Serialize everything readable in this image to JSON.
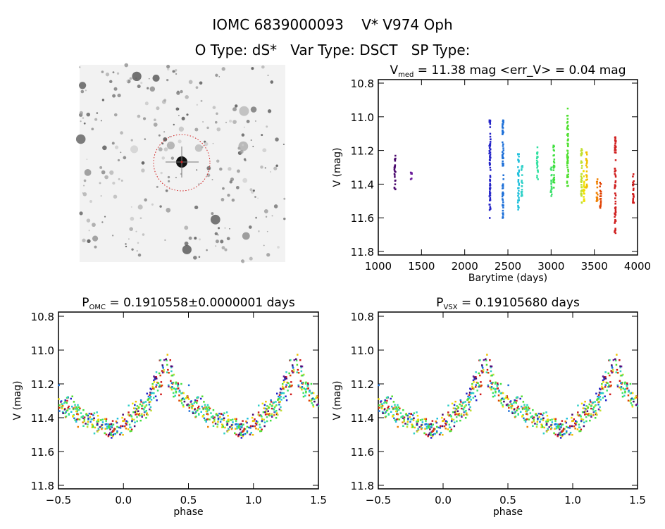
{
  "header": {
    "title": "IOMC 6839000093    V* V974 Oph",
    "subtitle": "O Type: dS*   Var Type: DSCT   SP Type:"
  },
  "image_panel": {
    "type": "star-field-finder-chart",
    "circle_color": "#d02020"
  },
  "chart_data": [
    {
      "type": "scatter",
      "title": "V_med = 11.38 mag <err_V> = 0.04 mag",
      "title_parts": {
        "main": "V",
        "sub": "med",
        "rest": " = 11.38 mag <err_V> = 0.04 mag"
      },
      "xlabel": "Barytime (days)",
      "ylabel": "V (mag)",
      "xlim": [
        1000,
        4000
      ],
      "ylim": [
        10.8,
        11.8
      ],
      "y_inverted": true,
      "xticks": [
        "1000",
        "1500",
        "2000",
        "2500",
        "3000",
        "3500",
        "4000"
      ],
      "yticks": [
        "10.8",
        "11.0",
        "11.2",
        "11.4",
        "11.6",
        "11.8"
      ],
      "seasons": [
        {
          "x": 1190,
          "ymin": 11.23,
          "ymax": 11.43,
          "color": "#4b0a6e"
        },
        {
          "x": 1380,
          "ymin": 11.33,
          "ymax": 11.37,
          "color": "#6a1b9a"
        },
        {
          "x": 2290,
          "ymin": 11.02,
          "ymax": 11.6,
          "color": "#2424c8"
        },
        {
          "x": 2440,
          "ymin": 11.02,
          "ymax": 11.6,
          "color": "#1e70d8"
        },
        {
          "x": 2620,
          "ymin": 11.22,
          "ymax": 11.55,
          "color": "#20c0dc"
        },
        {
          "x": 2660,
          "ymin": 11.29,
          "ymax": 11.47,
          "color": "#30d0c8"
        },
        {
          "x": 2840,
          "ymin": 11.18,
          "ymax": 11.37,
          "color": "#30e0a0"
        },
        {
          "x": 3000,
          "ymin": 11.3,
          "ymax": 11.47,
          "color": "#40e070"
        },
        {
          "x": 3030,
          "ymin": 11.17,
          "ymax": 11.42,
          "color": "#40e040"
        },
        {
          "x": 3190,
          "ymin": 10.95,
          "ymax": 11.41,
          "color": "#50e030"
        },
        {
          "x": 3350,
          "ymin": 11.19,
          "ymax": 11.51,
          "color": "#c0e030"
        },
        {
          "x": 3380,
          "ymin": 11.32,
          "ymax": 11.5,
          "color": "#f0e000"
        },
        {
          "x": 3410,
          "ymin": 11.21,
          "ymax": 11.42,
          "color": "#f0c000"
        },
        {
          "x": 3530,
          "ymin": 11.37,
          "ymax": 11.5,
          "color": "#f08000"
        },
        {
          "x": 3570,
          "ymin": 11.39,
          "ymax": 11.54,
          "color": "#e04000"
        },
        {
          "x": 3740,
          "ymin": 11.12,
          "ymax": 11.69,
          "color": "#d02020"
        },
        {
          "x": 3950,
          "ymin": 11.34,
          "ymax": 11.51,
          "color": "#d01818"
        }
      ]
    },
    {
      "type": "scatter",
      "title_parts": {
        "main": "P",
        "sub": "OMC",
        "rest": " = 0.1910558±0.0000001 days"
      },
      "xlabel": "phase",
      "ylabel": "V (mag)",
      "xlim": [
        -0.5,
        1.5
      ],
      "ylim": [
        10.8,
        11.8
      ],
      "y_inverted": true,
      "xticks": [
        "-0.5",
        "0.0",
        "0.5",
        "1.0",
        "1.5"
      ],
      "yticks": [
        "10.8",
        "11.0",
        "11.2",
        "11.4",
        "11.6",
        "11.8"
      ],
      "mean_curve": [
        [
          0,
          11.44
        ],
        [
          0.1,
          11.38
        ],
        [
          0.2,
          11.3
        ],
        [
          0.25,
          11.2
        ],
        [
          0.33,
          11.12
        ],
        [
          0.4,
          11.22
        ],
        [
          0.5,
          11.3
        ],
        [
          0.6,
          11.35
        ],
        [
          0.7,
          11.4
        ],
        [
          0.8,
          11.44
        ],
        [
          0.9,
          11.46
        ],
        [
          1.0,
          11.44
        ]
      ],
      "scatter_mag": 0.07
    },
    {
      "type": "scatter",
      "title_parts": {
        "main": "P",
        "sub": "VSX",
        "rest": " = 0.19105680 days"
      },
      "xlabel": "phase",
      "ylabel": "V (mag)",
      "xlim": [
        -0.5,
        1.5
      ],
      "ylim": [
        10.8,
        11.8
      ],
      "y_inverted": true,
      "xticks": [
        "-0.5",
        "0.0",
        "0.5",
        "1.0",
        "1.5"
      ],
      "yticks": [
        "10.8",
        "11.0",
        "11.2",
        "11.4",
        "11.6",
        "11.8"
      ],
      "mean_curve": [
        [
          0,
          11.44
        ],
        [
          0.1,
          11.38
        ],
        [
          0.2,
          11.3
        ],
        [
          0.25,
          11.2
        ],
        [
          0.33,
          11.12
        ],
        [
          0.4,
          11.22
        ],
        [
          0.5,
          11.3
        ],
        [
          0.6,
          11.35
        ],
        [
          0.7,
          11.4
        ],
        [
          0.8,
          11.44
        ],
        [
          0.9,
          11.46
        ],
        [
          1.0,
          11.44
        ]
      ],
      "scatter_mag": 0.07
    }
  ]
}
